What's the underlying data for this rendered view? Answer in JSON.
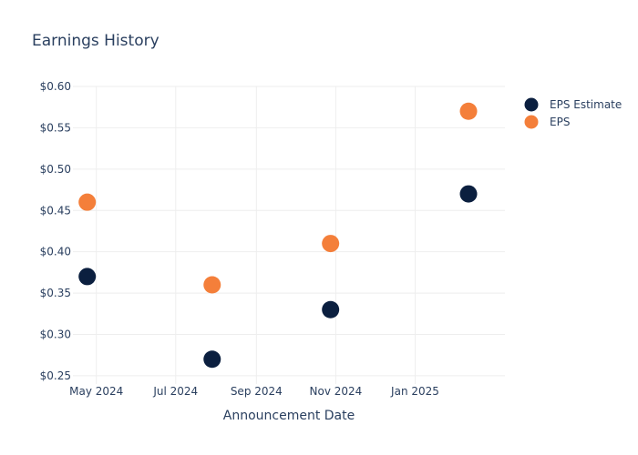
{
  "chart_data": {
    "type": "scatter",
    "title": "Earnings History",
    "xlabel": "Announcement Date",
    "ylabel": "",
    "x_ticks": [
      {
        "date": "2024-05-01",
        "label": "May 2024"
      },
      {
        "date": "2024-07-01",
        "label": "Jul 2024"
      },
      {
        "date": "2024-09-01",
        "label": "Sep 2024"
      },
      {
        "date": "2024-11-01",
        "label": "Nov 2024"
      },
      {
        "date": "2025-01-01",
        "label": "Jan 2025"
      }
    ],
    "xlim": [
      "2024-04-13",
      "2025-03-11"
    ],
    "y_ticks": [
      {
        "value": 0.25,
        "label": "$0.25"
      },
      {
        "value": 0.3,
        "label": "$0.30"
      },
      {
        "value": 0.35,
        "label": "$0.35"
      },
      {
        "value": 0.4,
        "label": "$0.40"
      },
      {
        "value": 0.45,
        "label": "$0.45"
      },
      {
        "value": 0.5,
        "label": "$0.50"
      },
      {
        "value": 0.55,
        "label": "$0.55"
      },
      {
        "value": 0.6,
        "label": "$0.60"
      }
    ],
    "ylim": [
      0.24,
      0.6
    ],
    "grid": true,
    "legend_position": "top-right",
    "series": [
      {
        "name": "EPS Estimate",
        "color": "#0b1f3f",
        "points": [
          {
            "x": "2024-04-24",
            "y": 0.37
          },
          {
            "x": "2024-07-29",
            "y": 0.27
          },
          {
            "x": "2024-10-28",
            "y": 0.33
          },
          {
            "x": "2025-02-11",
            "y": 0.47
          }
        ]
      },
      {
        "name": "EPS",
        "color": "#f47f3a",
        "points": [
          {
            "x": "2024-04-24",
            "y": 0.46
          },
          {
            "x": "2024-07-29",
            "y": 0.36
          },
          {
            "x": "2024-10-28",
            "y": 0.41
          },
          {
            "x": "2025-02-11",
            "y": 0.57
          }
        ]
      }
    ]
  }
}
